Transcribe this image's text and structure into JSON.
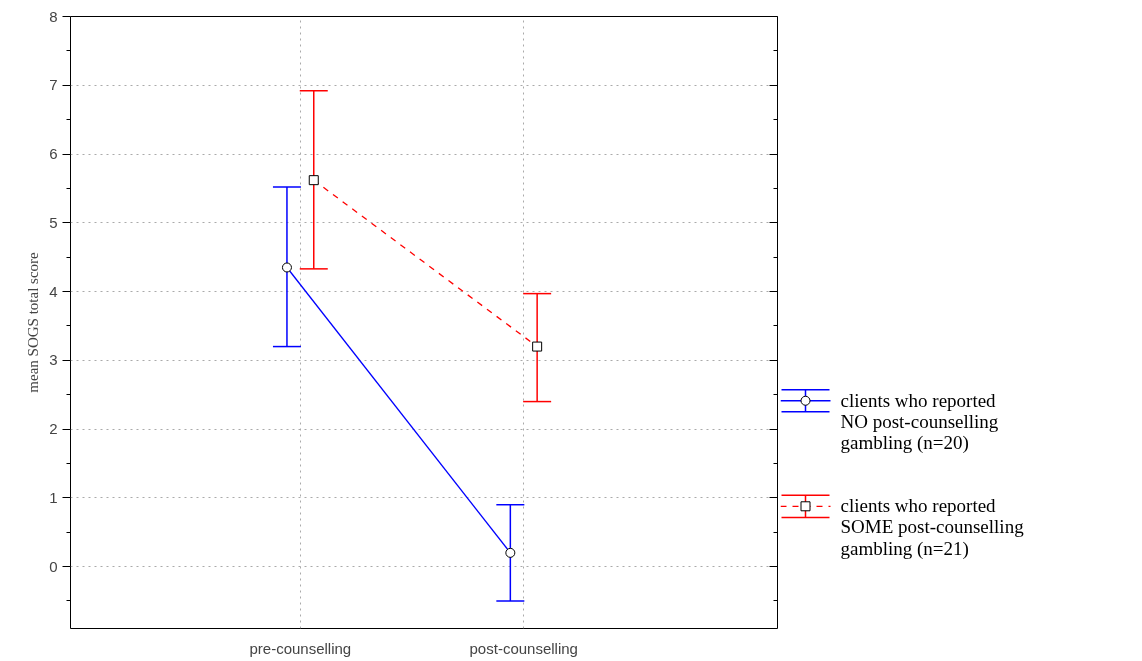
{
  "chart_data": {
    "type": "line",
    "categories": [
      "pre-counselling",
      "post-counselling"
    ],
    "ylabel": "mean SOGS total score",
    "ylim": [
      -0.9,
      8
    ],
    "yticks": [
      0,
      1,
      2,
      3,
      4,
      5,
      6,
      7,
      8
    ],
    "grid": true,
    "legend": "bottom right",
    "series": [
      {
        "name": "clients who reported NO post-counselling gambling (n=20)",
        "color": "#0000ff",
        "values": [
          4.35,
          0.2
        ],
        "errors": [
          [
            3.2,
            5.52
          ],
          [
            -0.5,
            0.9
          ]
        ],
        "marker": "circle",
        "line_style": "solid"
      },
      {
        "name": "clients who reported SOME post-counselling gambling (n=21)",
        "color": "#ff0000",
        "values": [
          5.62,
          3.2
        ],
        "errors": [
          [
            4.33,
            6.92
          ],
          [
            2.4,
            3.97
          ]
        ],
        "marker": "square",
        "line_style": "dashed"
      }
    ]
  }
}
